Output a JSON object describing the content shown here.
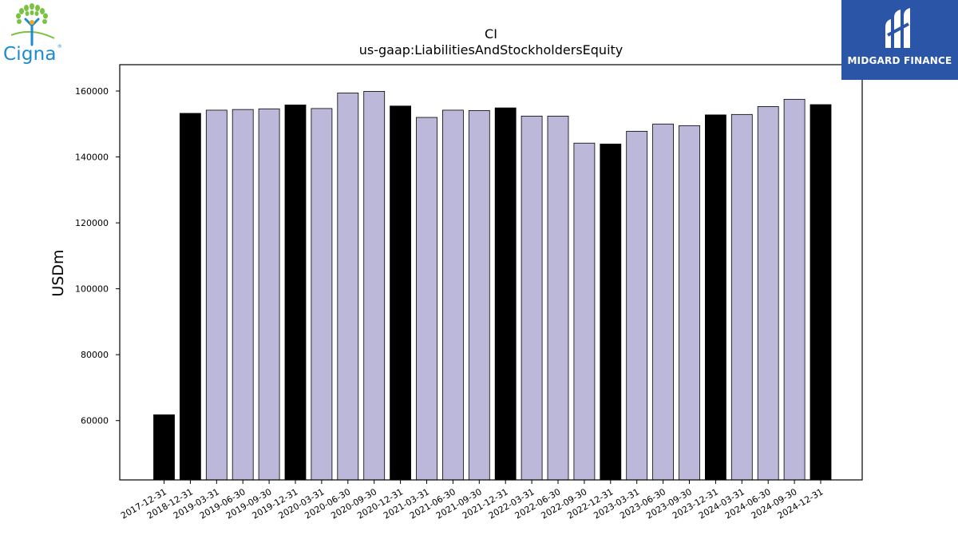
{
  "logos": {
    "left_text": "Cigna",
    "right_text": "MIDGARD FINANCE"
  },
  "chart_data": {
    "type": "bar",
    "title": "CI",
    "subtitle": "us-gaap:LiabilitiesAndStockholdersEquity",
    "ylabel": "USDm",
    "xlabel": "",
    "ylim": [
      42000,
      168000
    ],
    "yticks": [
      60000,
      80000,
      100000,
      120000,
      140000,
      160000
    ],
    "grid": false,
    "colors": {
      "annual": "#000000",
      "quarterly": "#bcb8da",
      "edge": "#000000"
    },
    "categories": [
      "2017-12-31",
      "2018-12-31",
      "2019-03-31",
      "2019-06-30",
      "2019-09-30",
      "2019-12-31",
      "2020-03-31",
      "2020-06-30",
      "2020-09-30",
      "2020-12-31",
      "2021-03-31",
      "2021-06-30",
      "2021-09-30",
      "2021-12-31",
      "2022-03-31",
      "2022-06-30",
      "2022-09-30",
      "2022-12-31",
      "2023-03-31",
      "2023-06-30",
      "2023-09-30",
      "2023-12-31",
      "2024-03-31",
      "2024-06-30",
      "2024-09-30",
      "2024-12-31"
    ],
    "values": [
      61753,
      153226,
      154200,
      154400,
      154600,
      155774,
      154700,
      159400,
      159900,
      155451,
      152000,
      154200,
      154100,
      154889,
      152400,
      152400,
      144200,
      143932,
      147800,
      150000,
      149500,
      152761,
      152900,
      155300,
      157500,
      155881
    ],
    "period": [
      "annual",
      "annual",
      "quarterly",
      "quarterly",
      "quarterly",
      "annual",
      "quarterly",
      "quarterly",
      "quarterly",
      "annual",
      "quarterly",
      "quarterly",
      "quarterly",
      "annual",
      "quarterly",
      "quarterly",
      "quarterly",
      "annual",
      "quarterly",
      "quarterly",
      "quarterly",
      "annual",
      "quarterly",
      "quarterly",
      "quarterly",
      "annual"
    ]
  }
}
